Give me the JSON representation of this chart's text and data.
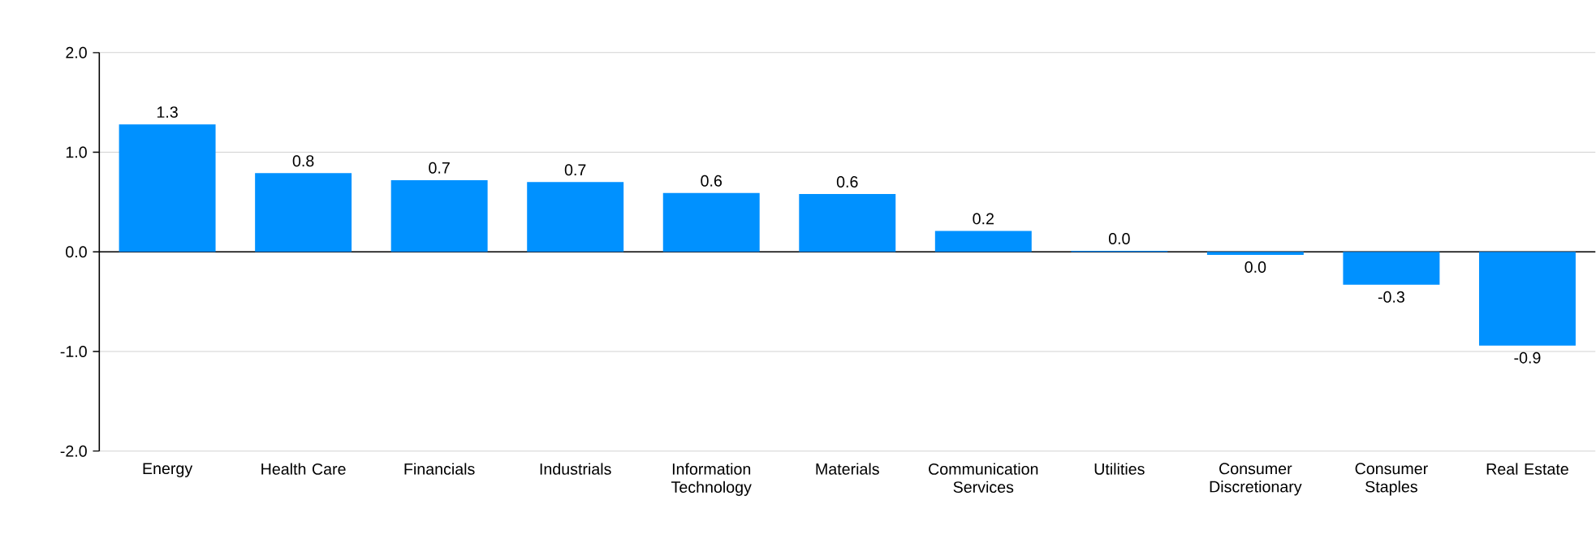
{
  "chart_data": {
    "type": "bar",
    "categories": [
      "Energy",
      "Health Care",
      "Financials",
      "Industrials",
      "Information Technology",
      "Materials",
      "Communication Services",
      "Utilities",
      "Consumer Discretionary",
      "Consumer Staples",
      "Real Estate"
    ],
    "values": [
      1.28,
      0.79,
      0.72,
      0.7,
      0.59,
      0.58,
      0.21,
      0.01,
      -0.03,
      -0.33,
      -0.94
    ],
    "value_labels": [
      "1.3",
      "0.8",
      "0.7",
      "0.7",
      "0.6",
      "0.6",
      "0.2",
      "0.0",
      "0.0",
      "-0.3",
      "-0.9"
    ],
    "color": "#0091ff",
    "ylim": [
      -2,
      2
    ],
    "yticks": [
      {
        "value": -2,
        "label": "-2.0"
      },
      {
        "value": -1,
        "label": "-1.0"
      },
      {
        "value": 0,
        "label": "0.0"
      },
      {
        "value": 1,
        "label": "1.0"
      },
      {
        "value": 2,
        "label": "2.0"
      }
    ],
    "grid": "y"
  }
}
